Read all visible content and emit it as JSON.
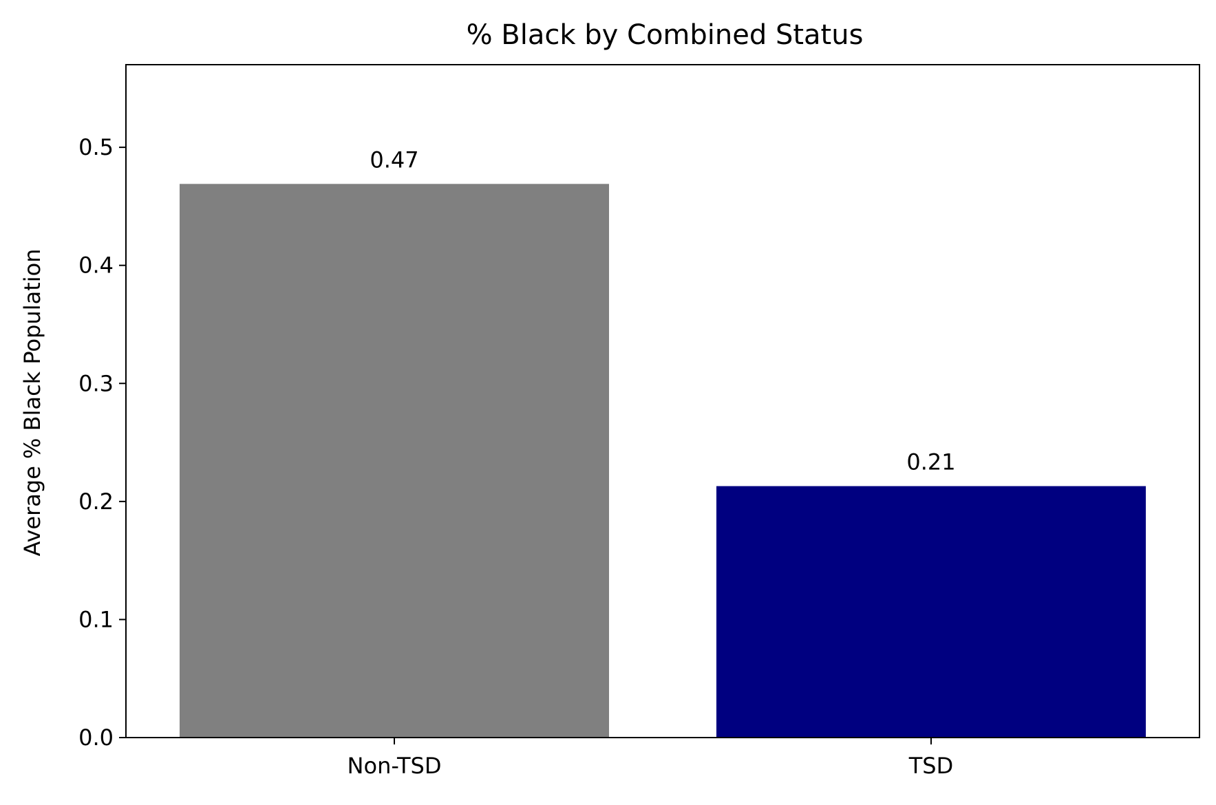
{
  "chart_data": {
    "type": "bar",
    "title": "% Black by Combined Status",
    "xlabel": "",
    "ylabel": "Average % Black Population",
    "categories": [
      "Non-TSD",
      "TSD"
    ],
    "values": [
      0.469,
      0.213
    ],
    "value_labels": [
      "0.47",
      "0.21"
    ],
    "bar_colors": [
      "#808080",
      "#000080"
    ],
    "ylim": [
      0,
      0.57
    ],
    "yticks": [
      0.0,
      0.1,
      0.2,
      0.3,
      0.4,
      0.5
    ],
    "ytick_labels": [
      "0.0",
      "0.1",
      "0.2",
      "0.3",
      "0.4",
      "0.5"
    ],
    "grid": false,
    "legend": "none"
  }
}
